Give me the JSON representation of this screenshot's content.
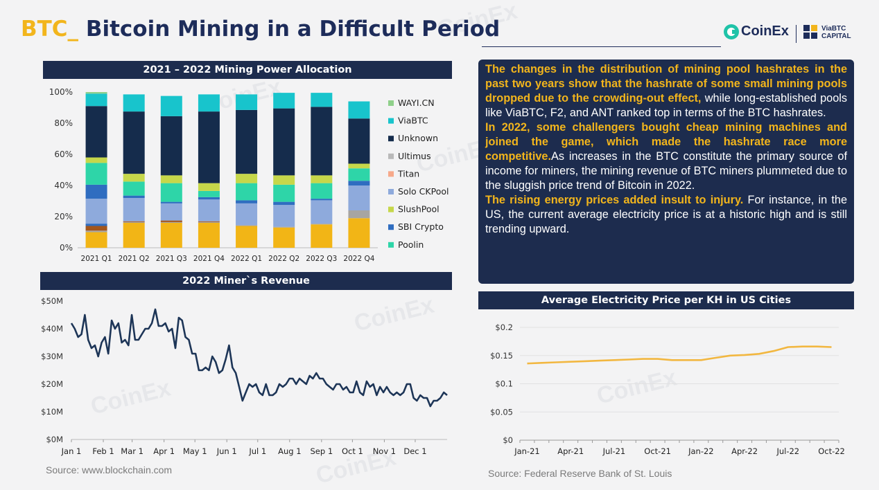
{
  "header": {
    "title_prefix": "BTC_",
    "title_main": " Bitcoin Mining in a Difficult Period",
    "logo_coinex": "CoinEx",
    "logo_viabtc_line1": "ViaBTC",
    "logo_viabtc_line2": "CAPITAL"
  },
  "textbox": {
    "p1_highlight": "The changes in the distribution of mining pool hashrates in the past two years show that the hashrate of some small mining pools dropped due to the crowding-out effect,",
    "p1_rest": " while long-established pools like ViaBTC, F2, and ANT ranked top in terms of the BTC hashrates.",
    "p2_highlight": "In 2022, some challengers bought cheap mining machines and joined the game, which made the hashrate race more competitive.",
    "p2_rest": "As increases in the BTC constitute the primary source of income for miners, the mining revenue of BTC miners plummeted due to the sluggish price trend of Bitcoin in 2022.",
    "p3_highlight": "The rising energy prices added insult to injury.",
    "p3_rest": " For instance, in the US, the current average electricity price is at a historic high and is still trending upward."
  },
  "sources": {
    "left": "Source: www.blockchain.com",
    "right": "Source: Federal Reserve Bank of St. Louis"
  },
  "colors": {
    "navy": "#1d2c4e",
    "accent_yellow": "#f2b51c",
    "line_revenue": "#1d3557",
    "line_electricity": "#f2b740"
  },
  "chart_data": [
    {
      "type": "bar",
      "stacked": true,
      "title": "2021 – 2022 Mining Power Allocation",
      "categories": [
        "2021 Q1",
        "2021 Q2",
        "2021 Q3",
        "2021 Q4",
        "2022 Q1",
        "2022 Q2",
        "2022 Q3",
        "2022 Q4"
      ],
      "yticks": [
        "0%",
        "20%",
        "40%",
        "60%",
        "80%",
        "100%"
      ],
      "ylim": [
        0,
        100
      ],
      "legend_position": "right",
      "legend": [
        "WAYI.CN",
        "ViaBTC",
        "Unknown",
        "Ultimus",
        "Titan",
        "Solo CKPool",
        "SlushPool",
        "SBI Crypto",
        "Poolin"
      ],
      "series": [
        {
          "name": "Yellow",
          "color": "#f2b516",
          "values": [
            10,
            16,
            16,
            16,
            14,
            13,
            15,
            19
          ]
        },
        {
          "name": "Gray",
          "color": "#a7a5a2",
          "values": [
            1,
            0.5,
            0.5,
            0.5,
            0.5,
            0.5,
            0.5,
            5
          ]
        },
        {
          "name": "Brown",
          "color": "#a3561c",
          "values": [
            3,
            0.5,
            1,
            0.5,
            0,
            0,
            0,
            0
          ]
        },
        {
          "name": "SBI Crypto",
          "color": "#2f6dc0",
          "values": [
            1.5,
            0,
            0,
            0,
            0,
            0,
            0,
            0
          ]
        },
        {
          "name": "Solo CKPool",
          "color": "#8eaadc",
          "values": [
            16,
            15,
            11,
            14,
            14,
            14,
            15,
            16
          ]
        },
        {
          "name": "SBI Crypto",
          "color": "#2f6dc0",
          "values": [
            9,
            1.5,
            1,
            1.5,
            2,
            2,
            1,
            3
          ]
        },
        {
          "name": "Poolin",
          "color": "#2ed5a8",
          "values": [
            14,
            9,
            12,
            4,
            11,
            11,
            10,
            8
          ]
        },
        {
          "name": "SlushPool",
          "color": "#c6d74a",
          "values": [
            3.5,
            5,
            5,
            5,
            6,
            6,
            5,
            3
          ]
        },
        {
          "name": "Unknown",
          "color": "#152c4c",
          "values": [
            33,
            40,
            38,
            46,
            41,
            43,
            44,
            29
          ]
        },
        {
          "name": "ViaBTC",
          "color": "#18c4cc",
          "values": [
            8,
            11,
            13,
            11,
            10,
            10,
            9,
            11
          ]
        },
        {
          "name": "WAYI.CN",
          "color": "#8fd08a",
          "values": [
            1,
            0,
            0,
            0,
            0,
            0,
            0,
            0
          ]
        }
      ]
    },
    {
      "type": "line",
      "title": "2022 Miner`s Revenue",
      "x_start": "2022-01-01",
      "x_ticks": [
        "Jan 1",
        "Feb 1",
        "Mar 1",
        "Apr 1",
        "May 1",
        "Jun 1",
        "Jul 1",
        "Aug 1",
        "Sep 1",
        "Oct 1",
        "Nov 1",
        "Dec 1"
      ],
      "yticks": [
        "$0M",
        "$10M",
        "$20M",
        "$30M",
        "$40M",
        "$50M"
      ],
      "ylim": [
        0,
        50
      ],
      "values_musd": [
        42,
        40,
        37,
        38,
        45,
        36,
        33,
        34,
        30,
        35,
        37,
        31,
        43,
        40,
        42,
        35,
        36,
        34,
        45,
        36,
        36,
        38,
        40,
        40,
        42,
        47,
        41,
        41,
        42,
        39,
        40,
        33,
        44,
        43,
        37,
        36,
        31,
        31,
        25,
        25,
        26,
        25,
        30,
        28,
        24,
        25,
        29,
        34,
        26,
        24,
        19,
        14,
        17,
        20,
        19,
        20,
        17,
        16,
        20,
        16,
        16,
        17,
        20,
        19,
        20,
        22,
        22,
        20,
        22,
        21,
        20,
        23,
        22,
        24,
        22,
        22,
        20,
        19,
        18,
        20,
        20,
        18,
        19,
        17,
        17,
        21,
        17,
        16,
        21,
        19,
        20,
        16,
        19,
        17,
        19,
        17,
        16,
        17,
        16,
        17,
        20,
        20,
        15,
        14,
        16,
        15,
        15,
        12,
        14,
        14,
        15,
        17,
        16
      ],
      "line_color": "#1d3557"
    },
    {
      "type": "line",
      "title": "Average Electricity Price per KH in US Cities",
      "x_ticks": [
        "Jan-21",
        "Apr-21",
        "Jul-21",
        "Oct-21",
        "Jan-22",
        "Apr-22",
        "Jul-22",
        "Oct-22"
      ],
      "x_months": [
        "Jan-21",
        "Feb-21",
        "Mar-21",
        "Apr-21",
        "May-21",
        "Jun-21",
        "Jul-21",
        "Aug-21",
        "Sep-21",
        "Oct-21",
        "Nov-21",
        "Dec-21",
        "Jan-22",
        "Feb-22",
        "Mar-22",
        "Apr-22",
        "May-22",
        "Jun-22",
        "Jul-22",
        "Aug-22",
        "Sep-22",
        "Oct-22"
      ],
      "values": [
        0.136,
        0.137,
        0.138,
        0.139,
        0.14,
        0.141,
        0.142,
        0.143,
        0.144,
        0.144,
        0.142,
        0.142,
        0.142,
        0.146,
        0.15,
        0.151,
        0.153,
        0.158,
        0.165,
        0.166,
        0.166,
        0.165
      ],
      "yticks": [
        "$0",
        "$0.05",
        "$0.1",
        "$0.15",
        "$0.2"
      ],
      "ylim": [
        0,
        0.2
      ],
      "line_color": "#f2b740"
    }
  ]
}
